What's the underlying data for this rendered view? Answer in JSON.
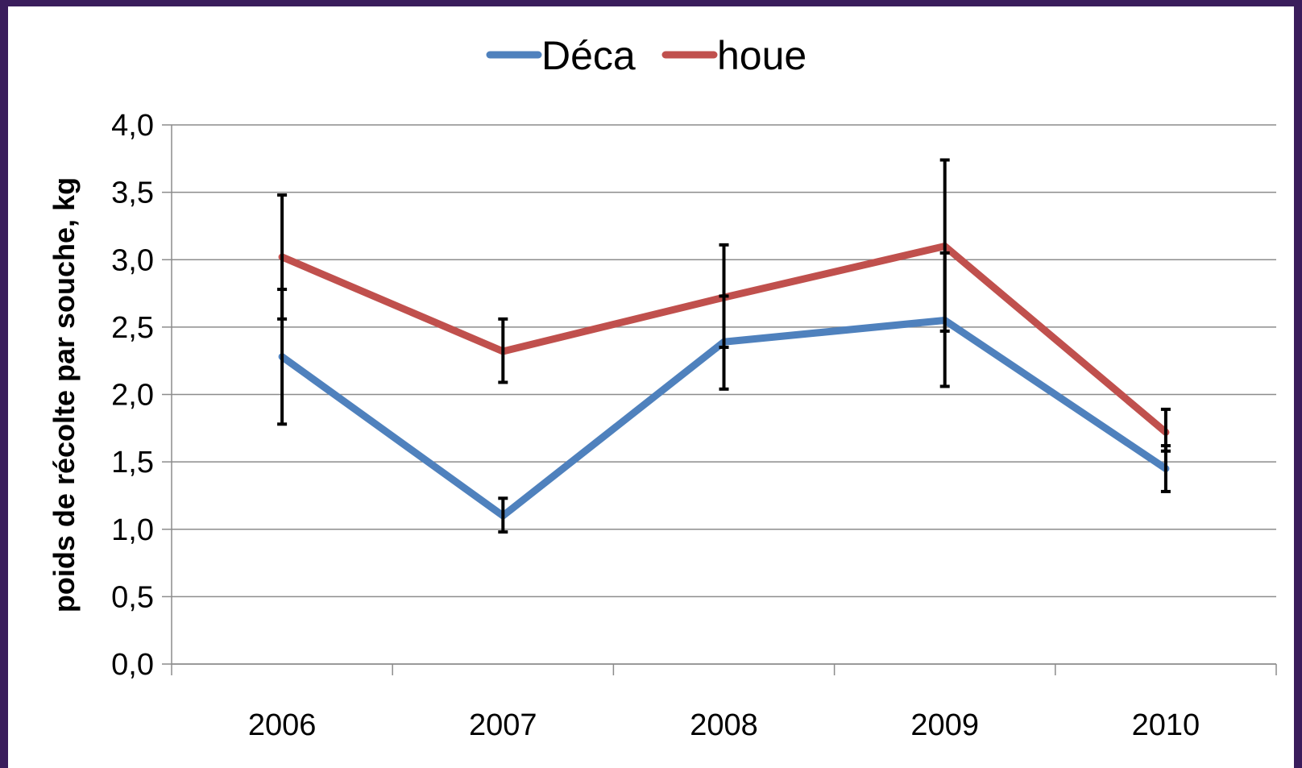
{
  "colors": {
    "frame": "#3a1d5c",
    "background": "#ffffff",
    "grid": "#8c8c8c",
    "error_bar": "#000000"
  },
  "chart_data": {
    "type": "line",
    "title": "",
    "xlabel": "",
    "ylabel": "poids de récolte par souche, kg",
    "categories": [
      "2006",
      "2007",
      "2008",
      "2009",
      "2010"
    ],
    "y_ticks": [
      "0,0",
      "0,5",
      "1,0",
      "1,5",
      "2,0",
      "2,5",
      "3,0",
      "3,5",
      "4,0"
    ],
    "ylim": [
      0,
      4
    ],
    "grid": true,
    "legend_position": "top",
    "series": [
      {
        "name": "Déca",
        "color": "#4f81bd",
        "values": [
          2.28,
          1.1,
          2.39,
          2.55,
          1.45
        ],
        "error_low": [
          1.78,
          0.98,
          2.04,
          2.06,
          1.28
        ],
        "error_high": [
          2.78,
          1.23,
          2.73,
          3.05,
          1.62
        ]
      },
      {
        "name": "houe",
        "color": "#c0504d",
        "values": [
          3.02,
          2.32,
          2.72,
          3.1,
          1.72
        ],
        "error_low": [
          2.56,
          2.09,
          2.35,
          2.47,
          1.58
        ],
        "error_high": [
          3.48,
          2.56,
          3.11,
          3.74,
          1.89
        ]
      }
    ]
  }
}
